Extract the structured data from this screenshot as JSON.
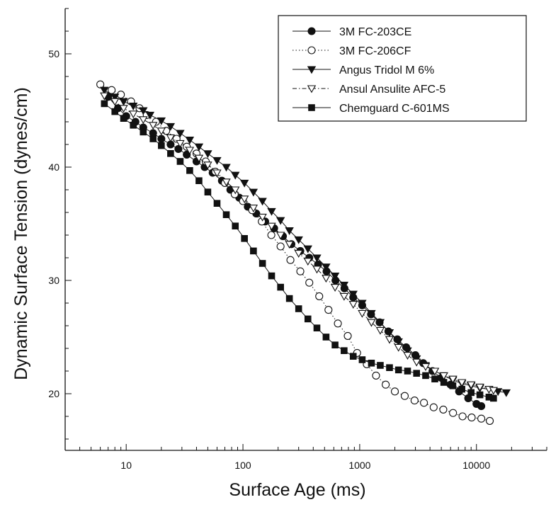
{
  "chart_data": {
    "type": "scatter",
    "title": "",
    "xlabel": "Surface Age (ms)",
    "ylabel": "Dynamic Surface Tension (dynes/cm)",
    "xscale": "log",
    "xlim": [
      3,
      40000
    ],
    "ylim": [
      15,
      54
    ],
    "x_ticks": [
      10,
      100,
      1000,
      10000
    ],
    "x_tick_labels": [
      "10",
      "100",
      "1000",
      "10000"
    ],
    "y_ticks": [
      20,
      30,
      40,
      50
    ],
    "y_tick_labels": [
      "20",
      "30",
      "40",
      "50"
    ],
    "grid": false,
    "legend_position": "top-right",
    "series": [
      {
        "name": "3M FC-203CE",
        "marker": "filled-circle",
        "line": "solid",
        "x": [
          7,
          8.5,
          10,
          12,
          14,
          17,
          20,
          24,
          28,
          33,
          40,
          47,
          55,
          66,
          78,
          93,
          110,
          130,
          155,
          185,
          220,
          260,
          310,
          370,
          440,
          520,
          620,
          740,
          880,
          1050,
          1250,
          1480,
          1760,
          2100,
          2500,
          3000,
          3500,
          4200,
          5000,
          6000,
          7100,
          8500,
          10000,
          11000
        ],
        "y": [
          46.2,
          45.2,
          44.5,
          44.0,
          43.5,
          43.0,
          42.5,
          42.0,
          41.6,
          41.1,
          40.5,
          40.0,
          39.5,
          38.8,
          38.0,
          37.3,
          36.5,
          35.9,
          35.2,
          34.6,
          33.9,
          33.2,
          32.6,
          32.0,
          31.4,
          30.8,
          30.0,
          29.3,
          28.5,
          27.8,
          27.0,
          26.3,
          25.5,
          24.8,
          24.1,
          23.4,
          22.7,
          22.0,
          21.4,
          20.8,
          20.2,
          19.6,
          19.1,
          18.9
        ]
      },
      {
        "name": "3M FC-206CF",
        "marker": "open-circle",
        "line": "dotted",
        "x": [
          6,
          7.5,
          9,
          11,
          13,
          15,
          18,
          22,
          27,
          33,
          40,
          48,
          58,
          70,
          85,
          100,
          120,
          145,
          175,
          210,
          255,
          310,
          370,
          450,
          540,
          650,
          790,
          950,
          1150,
          1380,
          1670,
          2000,
          2430,
          2950,
          3550,
          4300,
          5200,
          6300,
          7600,
          9100,
          11000,
          13000
        ],
        "y": [
          47.3,
          46.8,
          46.4,
          45.8,
          45.2,
          44.6,
          44.0,
          43.2,
          42.5,
          41.8,
          41.2,
          40.5,
          39.6,
          38.6,
          37.6,
          37.0,
          36.2,
          35.2,
          34.0,
          33.0,
          31.8,
          30.8,
          29.8,
          28.6,
          27.4,
          26.2,
          25.1,
          23.6,
          22.6,
          21.6,
          20.8,
          20.2,
          19.8,
          19.4,
          19.2,
          18.8,
          18.6,
          18.3,
          18.0,
          17.9,
          17.8,
          17.6
        ]
      },
      {
        "name": "Angus Tridol M 6%",
        "marker": "filled-triangle-down",
        "line": "solid",
        "x": [
          6.5,
          8,
          9.5,
          11.5,
          14,
          16,
          20,
          24,
          29,
          35,
          42,
          50,
          60,
          72,
          86,
          103,
          123,
          147,
          176,
          210,
          250,
          300,
          360,
          430,
          515,
          615,
          735,
          880,
          1050,
          1260,
          1500,
          1800,
          2150,
          2570,
          3070,
          3670,
          4400,
          5250,
          6280,
          7500,
          9000,
          10700,
          12800,
          15300,
          18000
        ],
        "y": [
          46.8,
          46.2,
          45.8,
          45.4,
          45.0,
          44.6,
          44.1,
          43.6,
          43.0,
          42.4,
          41.8,
          41.2,
          40.6,
          40.0,
          39.3,
          38.6,
          37.8,
          37.0,
          36.1,
          35.3,
          34.4,
          33.6,
          32.8,
          32.0,
          31.2,
          30.4,
          29.6,
          28.8,
          28.0,
          27.1,
          26.3,
          25.4,
          24.6,
          23.8,
          23.1,
          22.5,
          22.0,
          21.6,
          21.2,
          20.9,
          20.7,
          20.5,
          20.4,
          20.2,
          20.1
        ]
      },
      {
        "name": "Ansul Ansulite AFC-5",
        "marker": "open-triangle-down",
        "line": "dash-dot",
        "x": [
          6.5,
          8,
          9.5,
          11.5,
          14,
          17,
          20,
          24,
          29,
          35,
          42,
          50,
          60,
          72,
          86,
          103,
          123,
          147,
          176,
          210,
          250,
          300,
          360,
          430,
          515,
          615,
          735,
          880,
          1050,
          1260,
          1500,
          1800,
          2150,
          2570,
          3070,
          3670,
          4400,
          5250,
          6280,
          7500,
          9000,
          10700,
          12800,
          14000
        ],
        "y": [
          46.3,
          45.8,
          45.2,
          44.7,
          44.2,
          43.7,
          43.2,
          42.6,
          42.1,
          41.5,
          40.8,
          40.2,
          39.5,
          38.7,
          38.0,
          37.2,
          36.4,
          35.6,
          34.8,
          34.0,
          33.2,
          32.4,
          31.7,
          31.0,
          30.2,
          29.4,
          28.6,
          27.9,
          27.1,
          26.3,
          25.6,
          24.8,
          24.1,
          23.4,
          22.8,
          22.4,
          22.0,
          21.6,
          21.3,
          21.0,
          20.8,
          20.6,
          20.4,
          20.3
        ]
      },
      {
        "name": "Chemguard C-601MS",
        "marker": "filled-square",
        "line": "solid",
        "x": [
          6.5,
          8,
          9.5,
          11.5,
          14,
          17,
          20,
          24,
          29,
          35,
          42,
          50,
          60,
          72,
          86,
          103,
          123,
          147,
          176,
          210,
          250,
          300,
          360,
          430,
          515,
          615,
          735,
          880,
          1050,
          1260,
          1500,
          1800,
          2150,
          2570,
          3070,
          3670,
          4400,
          5250,
          6280,
          7500,
          9000,
          10700,
          12800,
          14000
        ],
        "y": [
          45.6,
          44.9,
          44.3,
          43.7,
          43.1,
          42.5,
          41.9,
          41.2,
          40.5,
          39.7,
          38.8,
          37.8,
          36.8,
          35.8,
          34.8,
          33.7,
          32.6,
          31.5,
          30.4,
          29.4,
          28.4,
          27.5,
          26.6,
          25.8,
          25.0,
          24.3,
          23.8,
          23.3,
          23.0,
          22.7,
          22.5,
          22.3,
          22.1,
          22.0,
          21.8,
          21.6,
          21.3,
          21.0,
          20.7,
          20.4,
          20.1,
          19.9,
          19.7,
          19.6
        ]
      }
    ]
  }
}
